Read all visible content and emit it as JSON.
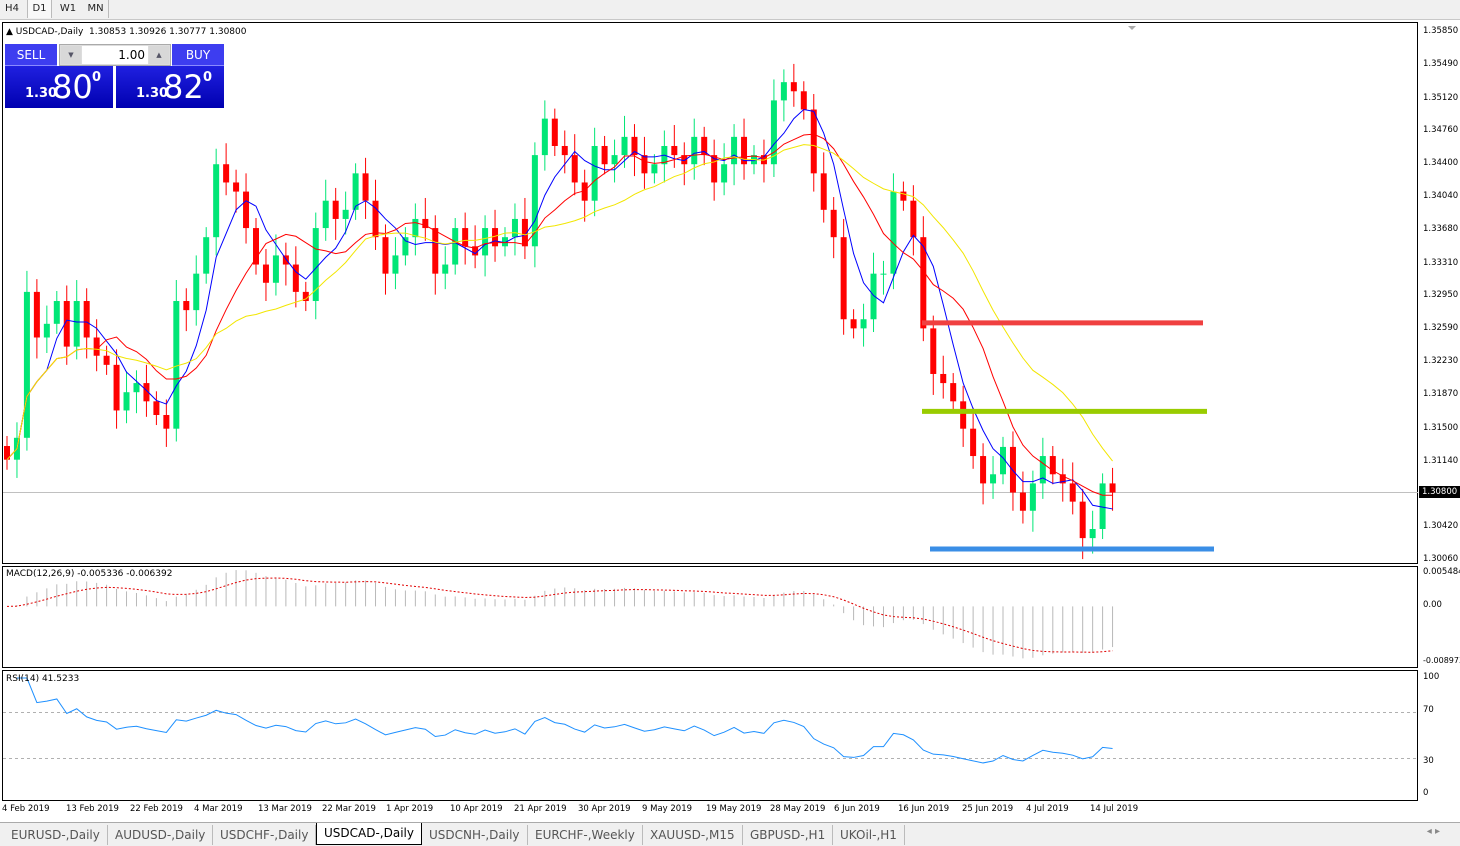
{
  "timeframes": [
    "H4",
    "D1",
    "W1",
    "MN"
  ],
  "header": {
    "symbol": "USDCAD-,Daily",
    "ohlc": "1.30853 1.30926 1.30777 1.30800"
  },
  "trade": {
    "sell_label": "SELL",
    "buy_label": "BUY",
    "lot": "1.00",
    "sell_prefix": "1.30",
    "sell_big": "80",
    "sell_sup": "0",
    "buy_prefix": "1.30",
    "buy_big": "82",
    "buy_sup": "0"
  },
  "price_axis": [
    "1.35850",
    "1.35490",
    "1.35120",
    "1.34760",
    "1.34400",
    "1.34040",
    "1.33680",
    "1.33310",
    "1.32950",
    "1.32590",
    "1.32230",
    "1.31870",
    "1.31500",
    "1.31140",
    "1.30420",
    "1.30060"
  ],
  "current_price": "1.30800",
  "macd": {
    "label": "MACD(12,26,9) -0.005336 -0.006392",
    "axis": [
      "0.005484",
      "0.00",
      "-0.008973"
    ]
  },
  "rsi": {
    "label": "RSI(14) 41.5233",
    "axis": [
      "100",
      "70",
      "30",
      "0"
    ]
  },
  "dates": [
    "4 Feb 2019",
    "13 Feb 2019",
    "22 Feb 2019",
    "4 Mar 2019",
    "13 Mar 2019",
    "22 Mar 2019",
    "1 Apr 2019",
    "10 Apr 2019",
    "21 Apr 2019",
    "30 Apr 2019",
    "9 May 2019",
    "19 May 2019",
    "28 May 2019",
    "6 Jun 2019",
    "16 Jun 2019",
    "25 Jun 2019",
    "4 Jul 2019",
    "14 Jul 2019"
  ],
  "tabs": [
    "EURUSD-,Daily",
    "AUDUSD-,Daily",
    "USDCHF-,Daily",
    "USDCAD-,Daily",
    "USDCNH-,Daily",
    "EURCHF-,Weekly",
    "XAUUSD-,M15",
    "GBPUSD-,H1",
    "UKOil-,H1"
  ],
  "active_tab": "USDCAD-,Daily",
  "colors": {
    "up": "#00e676",
    "down": "#ff0000",
    "ma_fast": "#0000ff",
    "ma_mid": "#ff0000",
    "ma_slow": "#f2e600",
    "level_red": "#f04040",
    "level_green": "#99cc00",
    "level_blue": "#3a8ee6"
  },
  "chart_data": {
    "type": "candlestick",
    "closes": [
      1.3116,
      1.314,
      1.33,
      1.325,
      1.3265,
      1.329,
      1.324,
      1.329,
      1.325,
      1.323,
      1.322,
      1.317,
      1.319,
      1.32,
      1.318,
      1.3165,
      1.315,
      1.329,
      1.328,
      1.332,
      1.336,
      1.344,
      1.342,
      1.341,
      1.337,
      1.333,
      1.331,
      1.334,
      1.333,
      1.33,
      1.329,
      1.337,
      1.34,
      1.338,
      1.339,
      1.343,
      1.34,
      1.336,
      1.332,
      1.334,
      1.336,
      1.338,
      1.337,
      1.332,
      1.333,
      1.337,
      1.335,
      1.334,
      1.337,
      1.335,
      1.336,
      1.338,
      1.335,
      1.345,
      1.349,
      1.346,
      1.345,
      1.342,
      1.34,
      1.346,
      1.344,
      1.345,
      1.347,
      1.345,
      1.343,
      1.344,
      1.346,
      1.345,
      1.344,
      1.347,
      1.345,
      1.342,
      1.344,
      1.347,
      1.344,
      1.345,
      1.344,
      1.351,
      1.353,
      1.352,
      1.35,
      1.343,
      1.339,
      1.336,
      1.327,
      1.326,
      1.327,
      1.332,
      1.332,
      1.341,
      1.34,
      1.336,
      1.326,
      1.321,
      1.32,
      1.318,
      1.315,
      1.312,
      1.309,
      1.31,
      1.313,
      1.308,
      1.306,
      1.309,
      1.312,
      1.31,
      1.309,
      1.307,
      1.303,
      1.304,
      1.309,
      1.308
    ],
    "levels": [
      1.3266,
      1.3169,
      1.3018
    ],
    "ylim": [
      1.3006,
      1.3585
    ]
  }
}
